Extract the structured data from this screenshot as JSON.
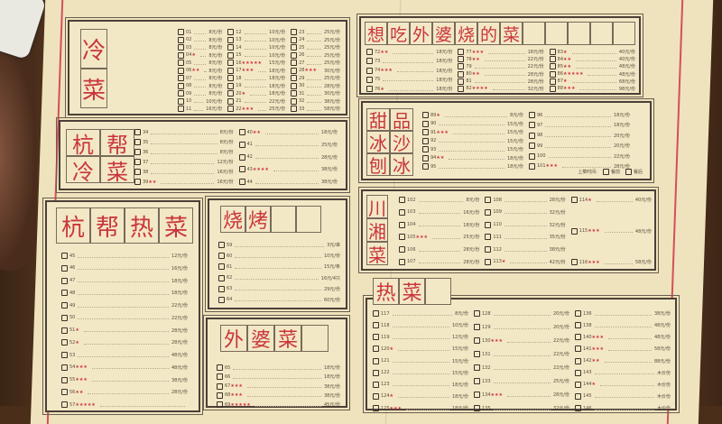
{
  "colors": {
    "paper": "#efe3bd",
    "ink_red": "#c9363b",
    "frame": "#4b4038",
    "wood": "#5b3a22"
  },
  "sections": [
    {
      "id": "cold",
      "title": [
        "冷",
        "菜"
      ],
      "columns": [
        [
          {
            "n": "01",
            "p": "8元/份"
          },
          {
            "n": "02",
            "p": "8元/份"
          },
          {
            "n": "03",
            "p": "8元/份"
          },
          {
            "n": "04",
            "p": "8元/份",
            "s": "★"
          },
          {
            "n": "05",
            "p": "8元/份"
          },
          {
            "n": "06",
            "p": "8元/份",
            "s": "★★"
          },
          {
            "n": "07",
            "p": "8元/份"
          },
          {
            "n": "08",
            "p": "8元/份"
          },
          {
            "n": "09",
            "p": "8元/份"
          },
          {
            "n": "10",
            "p": "10元/份"
          },
          {
            "n": "11",
            "p": "16元/份"
          }
        ],
        [
          {
            "n": "12",
            "p": "10元/份"
          },
          {
            "n": "13",
            "p": "10元/份"
          },
          {
            "n": "14",
            "p": "10元/份"
          },
          {
            "n": "15",
            "p": "10元/份"
          },
          {
            "n": "16",
            "p": "15元/份",
            "s": "★★★★★"
          },
          {
            "n": "17",
            "p": "18元/份",
            "s": "★★★"
          },
          {
            "n": "18",
            "p": "18元/份"
          },
          {
            "n": "19",
            "p": "18元/份"
          },
          {
            "n": "20",
            "p": "18元/份",
            "s": "★"
          },
          {
            "n": "21",
            "p": "22元/份"
          },
          {
            "n": "22",
            "p": "25元/份",
            "s": "★★★"
          }
        ],
        [
          {
            "n": "23",
            "p": "25元/份"
          },
          {
            "n": "24",
            "p": "25元/份"
          },
          {
            "n": "25",
            "p": "25元/份"
          },
          {
            "n": "26",
            "p": "25元/份"
          },
          {
            "n": "27",
            "p": "25元/份"
          },
          {
            "n": "28",
            "p": "30元/份",
            "s": "★★★"
          },
          {
            "n": "29",
            "p": "25元/份"
          },
          {
            "n": "30",
            "p": "28元/份"
          },
          {
            "n": "31",
            "p": "30元/份"
          },
          {
            "n": "32",
            "p": "38元/份"
          },
          {
            "n": "33",
            "p": "58元/份"
          }
        ]
      ]
    },
    {
      "id": "hangbang-cold",
      "title": [
        "杭",
        "帮",
        "冷",
        "菜"
      ],
      "columns": [
        [
          {
            "n": "34",
            "p": "8元/份"
          },
          {
            "n": "35",
            "p": "8元/份"
          },
          {
            "n": "36",
            "p": "8元/份"
          },
          {
            "n": "37",
            "p": "12元/份"
          },
          {
            "n": "38",
            "p": "16元/份"
          },
          {
            "n": "39",
            "p": "16元/份",
            "s": "★★"
          }
        ],
        [
          {
            "n": "40",
            "p": "18元/份",
            "s": "★★"
          },
          {
            "n": "41",
            "p": "25元/份"
          },
          {
            "n": "42",
            "p": "28元/份"
          },
          {
            "n": "43",
            "p": "38元/份",
            "s": "★★★★"
          },
          {
            "n": "44",
            "p": "38元/份"
          }
        ]
      ]
    },
    {
      "id": "hangbang-hot",
      "title": [
        "杭",
        "帮",
        "热",
        "菜"
      ],
      "columns": [
        [
          {
            "n": "45",
            "p": "12元/份"
          },
          {
            "n": "46",
            "p": "16元/份"
          },
          {
            "n": "47",
            "p": "18元/份"
          },
          {
            "n": "48",
            "p": "18元/份"
          },
          {
            "n": "49",
            "p": "22元/份"
          },
          {
            "n": "50",
            "p": "22元/份"
          },
          {
            "n": "51",
            "p": "28元/份",
            "s": "★"
          },
          {
            "n": "52",
            "p": "28元/份",
            "s": "★"
          },
          {
            "n": "53",
            "p": "48元/份"
          },
          {
            "n": "54",
            "p": "48元/份",
            "s": "★★★"
          },
          {
            "n": "55",
            "p": "38元/份",
            "s": "★★★"
          },
          {
            "n": "56",
            "p": "28元/份",
            "s": "★★"
          },
          {
            "n": "57",
            "p": "",
            "s": "★★★★★"
          }
        ]
      ]
    },
    {
      "id": "bbq",
      "title": [
        "烧",
        "烤",
        "",
        ""
      ],
      "columns": [
        [
          {
            "n": "59",
            "p": "3元/串"
          },
          {
            "n": "60",
            "p": "10元/份"
          },
          {
            "n": "61",
            "p": "15元/条"
          },
          {
            "n": "62",
            "p": "16元/4只"
          },
          {
            "n": "63",
            "p": "29元/份"
          },
          {
            "n": "64",
            "p": "60元/份"
          }
        ]
      ]
    },
    {
      "id": "grandma",
      "title": [
        "外",
        "婆",
        "菜",
        ""
      ],
      "columns": [
        [
          {
            "n": "65",
            "p": "18元/份"
          },
          {
            "n": "66",
            "p": "18元/份"
          },
          {
            "n": "67",
            "p": "38元/份",
            "s": "★★★"
          },
          {
            "n": "68",
            "p": "38元/份",
            "s": "★★★"
          },
          {
            "n": "69",
            "p": "45元/份",
            "s": "★★★★★"
          }
        ]
      ]
    },
    {
      "id": "want-grandma",
      "title": [
        "想",
        "吃",
        "外",
        "婆",
        "烧",
        "的",
        "菜",
        "",
        "",
        "",
        "",
        ""
      ],
      "columns": [
        [
          {
            "n": "72",
            "p": "18元/份",
            "s": "★★"
          },
          {
            "n": "73",
            "p": "18元/份"
          },
          {
            "n": "74",
            "p": "18元/份",
            "s": "★★★"
          },
          {
            "n": "75",
            "p": "18元/份"
          },
          {
            "n": "76",
            "p": "18元/份",
            "s": "★"
          }
        ],
        [
          {
            "n": "77",
            "p": "18元/份",
            "s": "★★★"
          },
          {
            "n": "78",
            "p": "22元/份",
            "s": "★★"
          },
          {
            "n": "79",
            "p": "22元/份"
          },
          {
            "n": "80",
            "p": "28元/份",
            "s": "★★"
          },
          {
            "n": "81",
            "p": "28元/份"
          },
          {
            "n": "82",
            "p": "32元/份",
            "s": "★★★★"
          }
        ],
        [
          {
            "n": "83",
            "p": "40元/份",
            "s": "★"
          },
          {
            "n": "84",
            "p": "40元/份",
            "s": "★★"
          },
          {
            "n": "85",
            "p": "48元/份",
            "s": "★★"
          },
          {
            "n": "86",
            "p": "48元/份",
            "s": "★★★★★"
          },
          {
            "n": "87",
            "p": "68元/份",
            "s": "★"
          },
          {
            "n": "88",
            "p": "98元/份",
            "s": "★★★"
          }
        ]
      ]
    },
    {
      "id": "dessert",
      "title": [
        "甜",
        "品",
        "冰",
        "沙",
        "刨",
        "冰"
      ],
      "columns": [
        [
          {
            "n": "89",
            "p": "8元/份",
            "s": "★"
          },
          {
            "n": "90",
            "p": "15元/份"
          },
          {
            "n": "91",
            "p": "15元/份",
            "s": "★★★"
          },
          {
            "n": "92",
            "p": "15元/份"
          },
          {
            "n": "93",
            "p": "15元/份"
          },
          {
            "n": "94",
            "p": "18元/份",
            "s": "★★"
          },
          {
            "n": "95",
            "p": "18元/份"
          }
        ],
        [
          {
            "n": "96",
            "p": "18元/份"
          },
          {
            "n": "97",
            "p": "18元/份"
          },
          {
            "n": "98",
            "p": "20元/份"
          },
          {
            "n": "99",
            "p": "20元/份"
          },
          {
            "n": "100",
            "p": "22元/份"
          },
          {
            "n": "101",
            "p": "28元/份",
            "s": "★★★"
          }
        ]
      ],
      "footer": {
        "label": "上菜时间:",
        "options": [
          "餐前",
          "餐后"
        ]
      }
    },
    {
      "id": "sichuan-hunan",
      "title": [
        "川",
        "湘",
        "菜"
      ],
      "columns": [
        [
          {
            "n": "102",
            "p": "8元/份"
          },
          {
            "n": "103",
            "p": "16元/份"
          },
          {
            "n": "104",
            "p": "18元/份"
          },
          {
            "n": "105",
            "p": "25元/份",
            "s": "★★★"
          },
          {
            "n": "106",
            "p": "28元/份"
          },
          {
            "n": "107",
            "p": "28元/份"
          }
        ],
        [
          {
            "n": "108",
            "p": "28元/份"
          },
          {
            "n": "109",
            "p": "32元/份"
          },
          {
            "n": "110",
            "p": "32元/份"
          },
          {
            "n": "111",
            "p": "35元/份"
          },
          {
            "n": "112",
            "p": "38元/份"
          },
          {
            "n": "113",
            "p": "42元/份",
            "s": "★"
          }
        ],
        [
          {
            "n": "114",
            "p": "40元/份",
            "s": "★"
          },
          {
            "n": "115",
            "p": "48元/份",
            "s": "★★★"
          },
          {
            "n": "116",
            "p": "58元/份",
            "s": "★★★"
          }
        ]
      ]
    },
    {
      "id": "hot",
      "title": [
        "热",
        "菜",
        ""
      ],
      "columns": [
        [
          {
            "n": "117",
            "p": "8元/份"
          },
          {
            "n": "118",
            "p": "10元/份"
          },
          {
            "n": "119",
            "p": "12元/份"
          },
          {
            "n": "120",
            "p": "15元/份",
            "s": "★"
          },
          {
            "n": "121",
            "p": "15元/份"
          },
          {
            "n": "122",
            "p": "15元/份"
          },
          {
            "n": "123",
            "p": "18元/份"
          },
          {
            "n": "124",
            "p": "18元/份",
            "s": "★"
          },
          {
            "n": "125",
            "p": "18元/份",
            "s": "★★★"
          }
        ],
        [
          {
            "n": "128",
            "p": "20元/份"
          },
          {
            "n": "129",
            "p": "20元/份"
          },
          {
            "n": "130",
            "p": "22元/份",
            "s": "★★★"
          },
          {
            "n": "131",
            "p": "22元/份"
          },
          {
            "n": "132",
            "p": "22元/份"
          },
          {
            "n": "133",
            "p": "25元/份"
          },
          {
            "n": "134",
            "p": "28元/份",
            "s": "★★★"
          },
          {
            "n": "135",
            "p": "32元/份"
          }
        ],
        [
          {
            "n": "136",
            "p": "38元/份"
          },
          {
            "n": "138",
            "p": "48元/份"
          },
          {
            "n": "140",
            "p": "48元/份",
            "s": "★★★"
          },
          {
            "n": "141",
            "p": "58元/份",
            "s": "★★★"
          },
          {
            "n": "142",
            "p": "88元/份",
            "s": "★★"
          },
          {
            "n": "143",
            "p": "木价份"
          },
          {
            "n": "144",
            "p": "木价份",
            "s": "★"
          },
          {
            "n": "145",
            "p": "木价份"
          },
          {
            "n": "146",
            "p": "木价份"
          }
        ]
      ]
    }
  ]
}
